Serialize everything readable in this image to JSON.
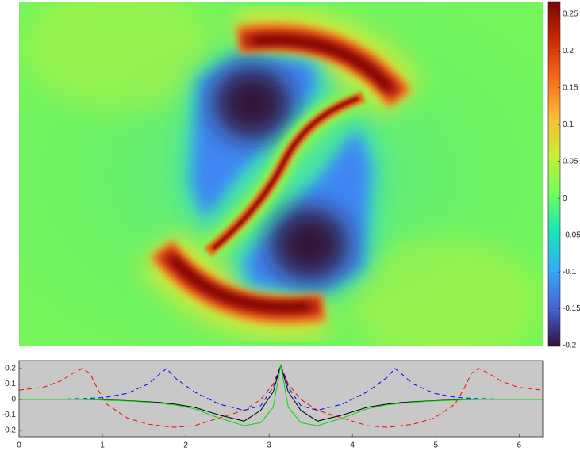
{
  "chart_data": [
    {
      "type": "heatmap",
      "colormap": "turbo",
      "zlim": [
        -0.201,
        0.267
      ],
      "colorbar_ticks": [
        -0.2,
        -0.15,
        -0.1,
        -0.05,
        0,
        0.05,
        0.1,
        0.15,
        0.2,
        0.25
      ]
    },
    {
      "type": "line",
      "background": "#c8c8c8",
      "x": [
        0,
        0.3,
        0.5,
        0.65,
        0.76,
        0.85,
        0.95,
        1.05,
        1.3,
        1.55,
        1.7,
        1.77,
        1.87,
        2.1,
        2.4,
        2.7,
        2.9,
        3.05,
        3.14,
        3.23,
        3.38,
        3.58,
        3.88,
        4.18,
        4.41,
        4.51,
        4.58,
        4.73,
        4.98,
        5.23,
        5.33,
        5.43,
        5.52,
        5.63,
        5.78,
        5.98,
        6.28
      ],
      "series": [
        {
          "color": "#ff0000",
          "dash": true,
          "values": [
            0.06,
            0.08,
            0.12,
            0.17,
            0.2,
            0.17,
            0.06,
            -0.03,
            -0.12,
            -0.16,
            -0.17,
            -0.175,
            -0.18,
            -0.17,
            -0.12,
            -0.07,
            0.0,
            0.1,
            0.22,
            0.1,
            0.0,
            -0.07,
            -0.12,
            -0.17,
            -0.18,
            -0.175,
            -0.17,
            -0.16,
            -0.12,
            -0.03,
            0.06,
            0.17,
            0.2,
            0.17,
            0.12,
            0.08,
            0.06
          ]
        },
        {
          "color": "#0000ff",
          "dash": true,
          "values": [
            0,
            0,
            0,
            0.005,
            0.005,
            0.008,
            0.01,
            0.015,
            0.04,
            0.1,
            0.17,
            0.2,
            0.14,
            0.05,
            -0.03,
            -0.07,
            -0.04,
            0.08,
            0.22,
            0.08,
            -0.04,
            -0.07,
            -0.03,
            0.05,
            0.14,
            0.2,
            0.17,
            0.1,
            0.04,
            0.015,
            0.01,
            0.008,
            0.005,
            0.005,
            0,
            0,
            0
          ]
        },
        {
          "color": "#000000",
          "dash": false,
          "values": [
            0,
            0,
            0,
            0,
            0,
            0,
            -0.002,
            -0.003,
            -0.008,
            -0.015,
            -0.02,
            -0.025,
            -0.03,
            -0.05,
            -0.1,
            -0.14,
            -0.07,
            0.05,
            0.22,
            0.05,
            -0.07,
            -0.14,
            -0.1,
            -0.05,
            -0.03,
            -0.025,
            -0.02,
            -0.015,
            -0.008,
            -0.003,
            -0.002,
            0,
            0,
            0,
            0,
            0,
            0
          ]
        },
        {
          "color": "#00dd00",
          "dash": false,
          "values": [
            0,
            0,
            0,
            0,
            0,
            -0.002,
            -0.003,
            -0.005,
            -0.01,
            -0.018,
            -0.025,
            -0.03,
            -0.035,
            -0.06,
            -0.12,
            -0.17,
            -0.15,
            -0.05,
            0.22,
            -0.05,
            -0.15,
            -0.17,
            -0.12,
            -0.06,
            -0.035,
            -0.03,
            -0.025,
            -0.018,
            -0.01,
            -0.005,
            -0.003,
            -0.002,
            0,
            0,
            0,
            0,
            0
          ]
        }
      ],
      "xlim": [
        0,
        6.283
      ],
      "xticks": [
        0,
        1,
        2,
        3,
        4,
        5,
        6
      ],
      "ylim": [
        -0.241,
        0.251
      ],
      "yticks": [
        -0.2,
        -0.1,
        0,
        0.1,
        0.2
      ]
    }
  ]
}
